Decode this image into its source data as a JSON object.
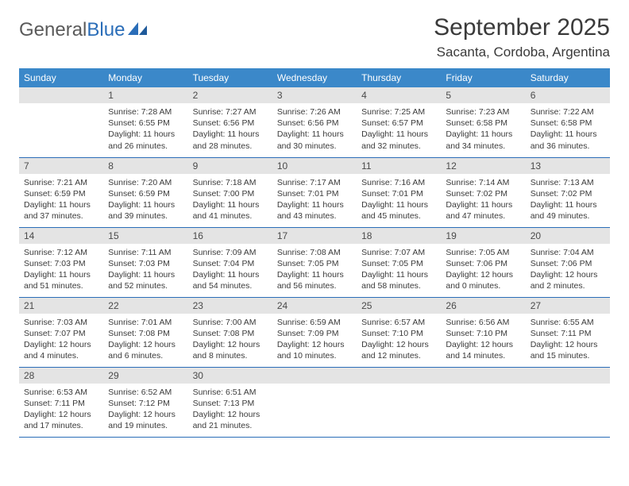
{
  "brand": {
    "name_part1": "General",
    "name_part2": "Blue"
  },
  "title": "September 2025",
  "location": "Sacanta, Cordoba, Argentina",
  "colors": {
    "header_bg": "#3b88c9",
    "header_text": "#ffffff",
    "daynum_bg": "#e4e4e4",
    "row_border": "#2a6db8",
    "body_text": "#3a3a3a",
    "logo_blue": "#2a6db8"
  },
  "weekdays": [
    "Sunday",
    "Monday",
    "Tuesday",
    "Wednesday",
    "Thursday",
    "Friday",
    "Saturday"
  ],
  "weeks": [
    [
      null,
      {
        "n": "1",
        "sunrise": "7:28 AM",
        "sunset": "6:55 PM",
        "daylight": "11 hours and 26 minutes."
      },
      {
        "n": "2",
        "sunrise": "7:27 AM",
        "sunset": "6:56 PM",
        "daylight": "11 hours and 28 minutes."
      },
      {
        "n": "3",
        "sunrise": "7:26 AM",
        "sunset": "6:56 PM",
        "daylight": "11 hours and 30 minutes."
      },
      {
        "n": "4",
        "sunrise": "7:25 AM",
        "sunset": "6:57 PM",
        "daylight": "11 hours and 32 minutes."
      },
      {
        "n": "5",
        "sunrise": "7:23 AM",
        "sunset": "6:58 PM",
        "daylight": "11 hours and 34 minutes."
      },
      {
        "n": "6",
        "sunrise": "7:22 AM",
        "sunset": "6:58 PM",
        "daylight": "11 hours and 36 minutes."
      }
    ],
    [
      {
        "n": "7",
        "sunrise": "7:21 AM",
        "sunset": "6:59 PM",
        "daylight": "11 hours and 37 minutes."
      },
      {
        "n": "8",
        "sunrise": "7:20 AM",
        "sunset": "6:59 PM",
        "daylight": "11 hours and 39 minutes."
      },
      {
        "n": "9",
        "sunrise": "7:18 AM",
        "sunset": "7:00 PM",
        "daylight": "11 hours and 41 minutes."
      },
      {
        "n": "10",
        "sunrise": "7:17 AM",
        "sunset": "7:01 PM",
        "daylight": "11 hours and 43 minutes."
      },
      {
        "n": "11",
        "sunrise": "7:16 AM",
        "sunset": "7:01 PM",
        "daylight": "11 hours and 45 minutes."
      },
      {
        "n": "12",
        "sunrise": "7:14 AM",
        "sunset": "7:02 PM",
        "daylight": "11 hours and 47 minutes."
      },
      {
        "n": "13",
        "sunrise": "7:13 AM",
        "sunset": "7:02 PM",
        "daylight": "11 hours and 49 minutes."
      }
    ],
    [
      {
        "n": "14",
        "sunrise": "7:12 AM",
        "sunset": "7:03 PM",
        "daylight": "11 hours and 51 minutes."
      },
      {
        "n": "15",
        "sunrise": "7:11 AM",
        "sunset": "7:03 PM",
        "daylight": "11 hours and 52 minutes."
      },
      {
        "n": "16",
        "sunrise": "7:09 AM",
        "sunset": "7:04 PM",
        "daylight": "11 hours and 54 minutes."
      },
      {
        "n": "17",
        "sunrise": "7:08 AM",
        "sunset": "7:05 PM",
        "daylight": "11 hours and 56 minutes."
      },
      {
        "n": "18",
        "sunrise": "7:07 AM",
        "sunset": "7:05 PM",
        "daylight": "11 hours and 58 minutes."
      },
      {
        "n": "19",
        "sunrise": "7:05 AM",
        "sunset": "7:06 PM",
        "daylight": "12 hours and 0 minutes."
      },
      {
        "n": "20",
        "sunrise": "7:04 AM",
        "sunset": "7:06 PM",
        "daylight": "12 hours and 2 minutes."
      }
    ],
    [
      {
        "n": "21",
        "sunrise": "7:03 AM",
        "sunset": "7:07 PM",
        "daylight": "12 hours and 4 minutes."
      },
      {
        "n": "22",
        "sunrise": "7:01 AM",
        "sunset": "7:08 PM",
        "daylight": "12 hours and 6 minutes."
      },
      {
        "n": "23",
        "sunrise": "7:00 AM",
        "sunset": "7:08 PM",
        "daylight": "12 hours and 8 minutes."
      },
      {
        "n": "24",
        "sunrise": "6:59 AM",
        "sunset": "7:09 PM",
        "daylight": "12 hours and 10 minutes."
      },
      {
        "n": "25",
        "sunrise": "6:57 AM",
        "sunset": "7:10 PM",
        "daylight": "12 hours and 12 minutes."
      },
      {
        "n": "26",
        "sunrise": "6:56 AM",
        "sunset": "7:10 PM",
        "daylight": "12 hours and 14 minutes."
      },
      {
        "n": "27",
        "sunrise": "6:55 AM",
        "sunset": "7:11 PM",
        "daylight": "12 hours and 15 minutes."
      }
    ],
    [
      {
        "n": "28",
        "sunrise": "6:53 AM",
        "sunset": "7:11 PM",
        "daylight": "12 hours and 17 minutes."
      },
      {
        "n": "29",
        "sunrise": "6:52 AM",
        "sunset": "7:12 PM",
        "daylight": "12 hours and 19 minutes."
      },
      {
        "n": "30",
        "sunrise": "6:51 AM",
        "sunset": "7:13 PM",
        "daylight": "12 hours and 21 minutes."
      },
      null,
      null,
      null,
      null
    ]
  ],
  "labels": {
    "sunrise": "Sunrise:",
    "sunset": "Sunset:",
    "daylight": "Daylight:"
  }
}
